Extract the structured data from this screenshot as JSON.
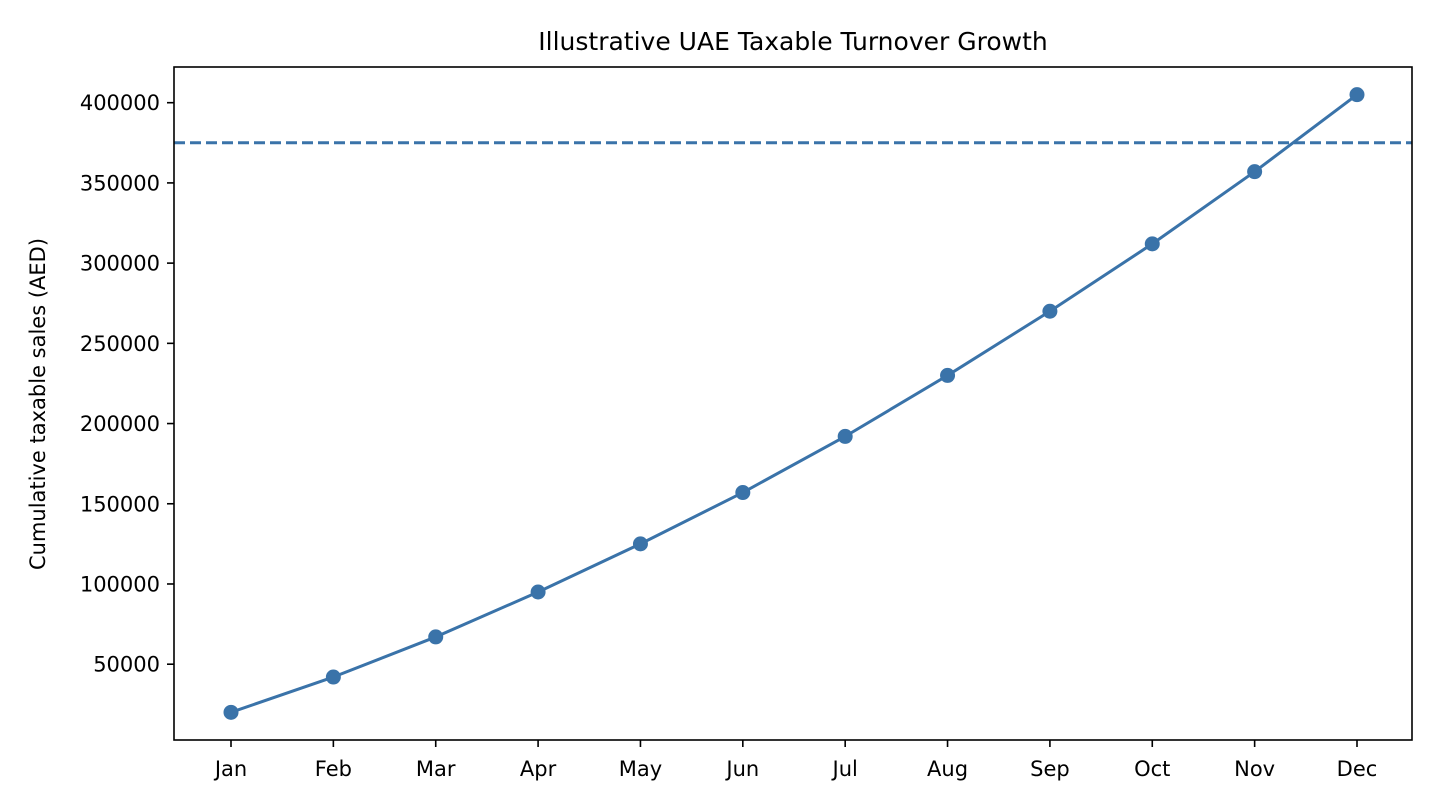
{
  "chart_data": {
    "type": "line",
    "title": "Illustrative UAE Taxable Turnover Growth",
    "xlabel": "",
    "ylabel": "Cumulative taxable sales (AED)",
    "categories": [
      "Jan",
      "Feb",
      "Mar",
      "Apr",
      "May",
      "Jun",
      "Jul",
      "Aug",
      "Sep",
      "Oct",
      "Nov",
      "Dec"
    ],
    "series": [
      {
        "values": [
          20000,
          42000,
          67000,
          95000,
          125000,
          157000,
          192000,
          230000,
          270000,
          312000,
          357000,
          405000
        ],
        "color": "#3a73a9",
        "marker": "circle"
      }
    ],
    "reference_line": {
      "value": 375000,
      "style": "dashed",
      "color": "#3a73a9"
    },
    "ylim": [
      2750,
      422250
    ],
    "yticks": [
      50000,
      100000,
      150000,
      200000,
      250000,
      300000,
      350000,
      400000
    ],
    "grid": false,
    "legend": "none"
  }
}
